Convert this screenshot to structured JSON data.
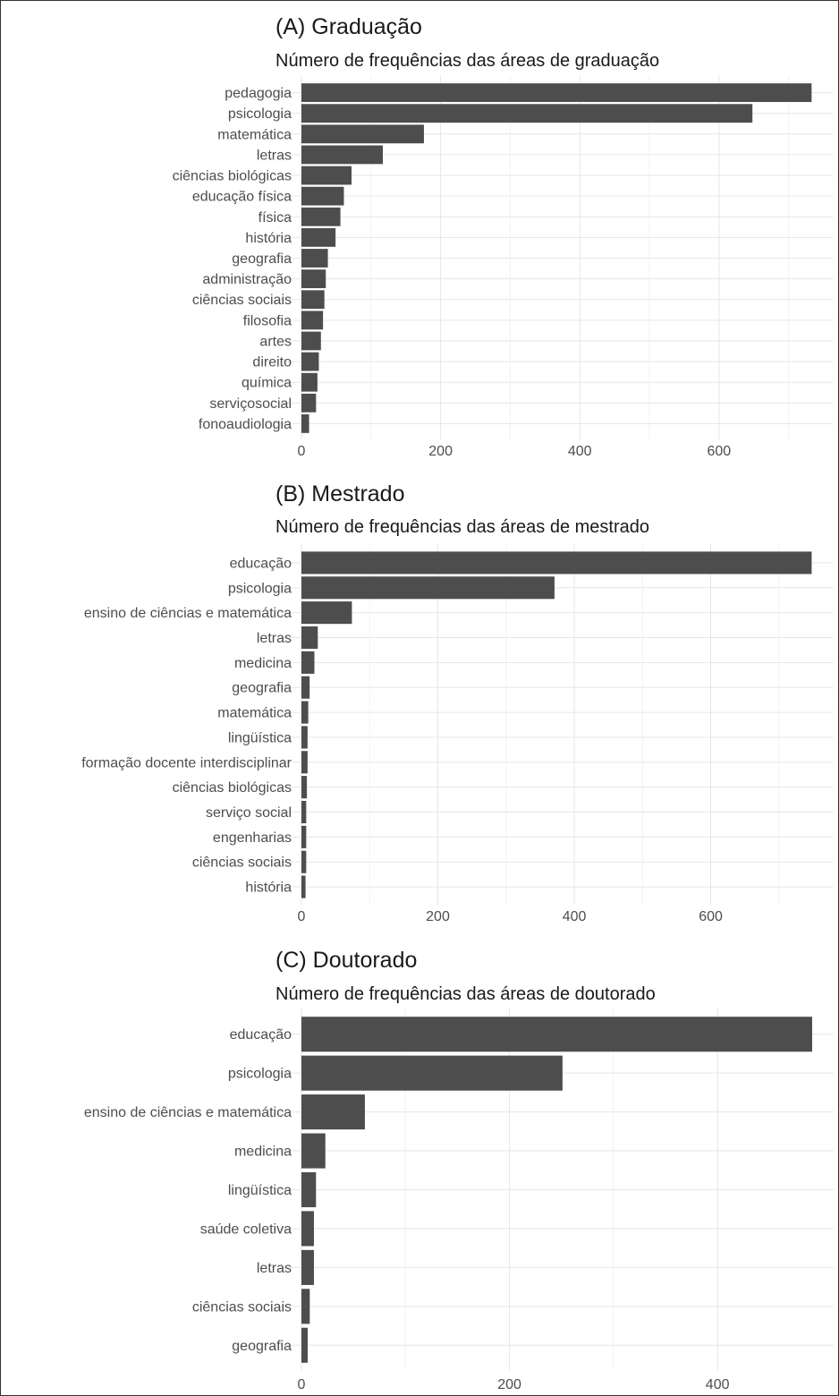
{
  "colors": {
    "bar": "#4d4d4d",
    "text": "#1a1a1a",
    "axis_text": "#4d4d4d",
    "grid": "#e6e6e6"
  },
  "chart_data": [
    {
      "type": "bar",
      "orientation": "horizontal",
      "title": "(A) Graduação",
      "subtitle": "Número de frequências das áreas de graduação",
      "xlabel": "",
      "ylabel": "",
      "grid": true,
      "categories": [
        "pedagogia",
        "psicologia",
        "matemática",
        "letras",
        "ciências biológicas",
        "educação física",
        "física",
        "história",
        "geografia",
        "administração",
        "ciências sociais",
        "filosofia",
        "artes",
        "direito",
        "química",
        "serviçosocial",
        "fonoaudiologia"
      ],
      "values": [
        733,
        648,
        176,
        117,
        72,
        61,
        56,
        49,
        38,
        35,
        33,
        31,
        28,
        25,
        23,
        21,
        11
      ],
      "xlim": [
        0,
        733
      ],
      "xticks": [
        0,
        200,
        400,
        600
      ]
    },
    {
      "type": "bar",
      "orientation": "horizontal",
      "title": "(B) Mestrado",
      "subtitle": "Número de frequências das áreas de mestrado",
      "xlabel": "",
      "ylabel": "",
      "grid": true,
      "categories": [
        "educação",
        "psicologia",
        "ensino de ciências e matemática",
        "letras",
        "medicina",
        "geografia",
        "matemática",
        "lingüística",
        "formação docente interdisciplinar",
        "ciências biológicas",
        "serviço social",
        "engenharias",
        "ciências sociais",
        "história"
      ],
      "values": [
        748,
        371,
        74,
        24,
        19,
        12,
        10,
        9,
        9,
        8,
        7,
        7,
        7,
        6
      ],
      "xlim": [
        0,
        748
      ],
      "xticks": [
        0,
        200,
        400,
        600
      ]
    },
    {
      "type": "bar",
      "orientation": "horizontal",
      "title": "(C) Doutorado",
      "subtitle": "Número de frequências das áreas de doutorado",
      "xlabel": "",
      "ylabel": "",
      "grid": true,
      "categories": [
        "educação",
        "psicologia",
        "ensino de ciências e matemática",
        "medicina",
        "lingüística",
        "saúde coletiva",
        "letras",
        "ciências sociais",
        "geografia"
      ],
      "values": [
        491,
        251,
        61,
        23,
        14,
        12,
        12,
        8,
        6
      ],
      "xlim": [
        0,
        491
      ],
      "xticks": [
        0,
        200,
        400
      ]
    }
  ]
}
